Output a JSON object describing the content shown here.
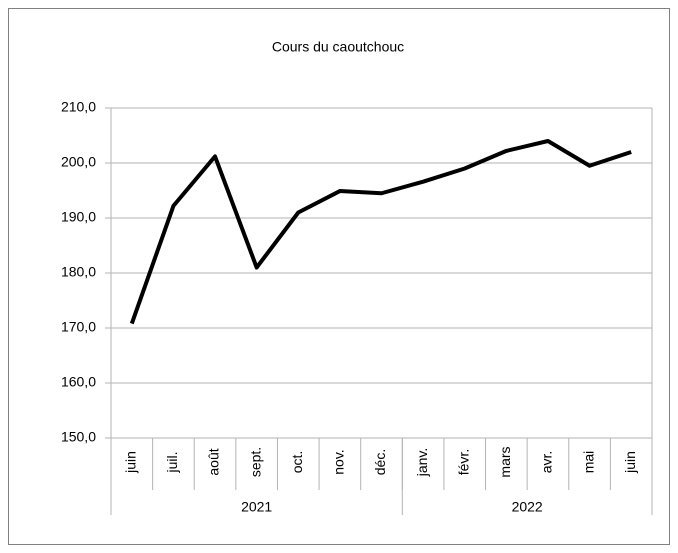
{
  "chart_data": {
    "type": "line",
    "title": "Cours du caoutchouc",
    "groups": [
      {
        "label": "2021",
        "categories": [
          "juin",
          "juil.",
          "août",
          "sept.",
          "oct.",
          "nov.",
          "déc."
        ]
      },
      {
        "label": "2022",
        "categories": [
          "janv.",
          "févr.",
          "mars",
          "avr.",
          "mai",
          "juin"
        ]
      }
    ],
    "series": [
      {
        "color": "#000000",
        "values": [
          170.8,
          192.2,
          201.2,
          181.0,
          191.0,
          194.9,
          194.5,
          196.6,
          199.0,
          202.2,
          204.0,
          199.5,
          202.0
        ]
      }
    ],
    "ylim": [
      150,
      210
    ],
    "yticks": [
      {
        "value": 150,
        "label": "150,0"
      },
      {
        "value": 160,
        "label": "160,0"
      },
      {
        "value": 170,
        "label": "170,0"
      },
      {
        "value": 180,
        "label": "180,0"
      },
      {
        "value": 190,
        "label": "190,0"
      },
      {
        "value": 200,
        "label": "200,0"
      },
      {
        "value": 210,
        "label": "210,0"
      }
    ],
    "grid": true
  }
}
